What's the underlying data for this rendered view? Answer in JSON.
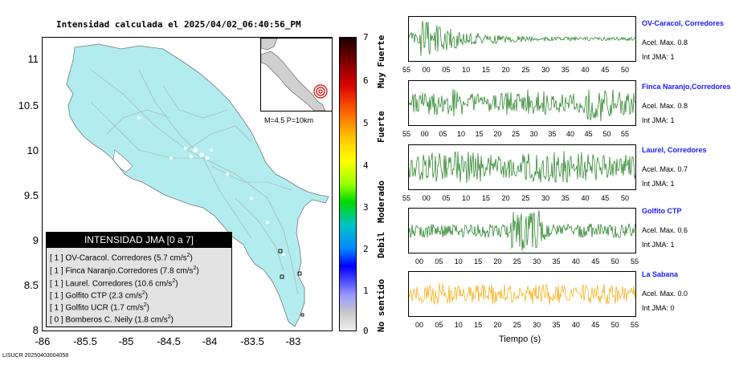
{
  "title": "Intensidad calculada el 2025/04/02_06:40:56_PM",
  "map": {
    "y_ticks": [
      "11",
      "10.5",
      "10",
      "9.5",
      "9",
      "8.5",
      "8"
    ],
    "x_ticks": [
      "-86",
      "-85.5",
      "-85",
      "-84.5",
      "-84",
      "-83.5",
      "-83"
    ],
    "land_color": "#b3ecee",
    "inset_text": "M=4.5 P=10km"
  },
  "legend": {
    "heading": "INTENSIDAD JMA [0 a 7]",
    "rows": [
      {
        "int": "[ 1 ]",
        "name": "OV-Caracol. Corredores",
        "acc": "(5.7 cm/s",
        "sup": "2",
        "close": ")"
      },
      {
        "int": "[ 1 ]",
        "name": "Finca Naranjo.Corredores",
        "acc": "(7.8 cm/s",
        "sup": "2",
        "close": ")"
      },
      {
        "int": "[ 1 ]",
        "name": "Laurel. Corredores",
        "acc": "(10.6 cm/s",
        "sup": "2",
        "close": ")"
      },
      {
        "int": "[ 1 ]",
        "name": "Golfito CTP",
        "acc": "(2.3 cm/s",
        "sup": "2",
        "close": ")"
      },
      {
        "int": "[ 1 ]",
        "name": "Golfito UCR",
        "acc": "(1.7 cm/s",
        "sup": "2",
        "close": ")"
      },
      {
        "int": "[ 0 ]",
        "name": "Bomberos C. Neily",
        "acc": "(1.8 cm/s",
        "sup": "2",
        "close": ")"
      }
    ]
  },
  "colorbar": {
    "labels": [
      "7",
      "6",
      "5",
      "4",
      "3",
      "2",
      "1",
      "0"
    ],
    "categories": [
      "Muy Fuerte",
      "Fuerte",
      "Moderado",
      "Debil",
      "No sentido"
    ]
  },
  "traces": [
    {
      "name": "OV-Caracol, Corredores",
      "acel": "Acel. Max. 0.8",
      "int": "Int JMA: 1",
      "color": "#1a7a1a",
      "ticks": [
        "55",
        "00",
        "05",
        "10",
        "15",
        "20",
        "25",
        "30",
        "35",
        "40",
        "45",
        "50"
      ]
    },
    {
      "name": "Finca Naranjo,Corredores",
      "acel": "Acel. Max. 0.8",
      "int": "Int JMA: 1",
      "color": "#1a7a1a",
      "ticks": [
        "55",
        "00",
        "05",
        "10",
        "15",
        "20",
        "25",
        "30",
        "35",
        "40",
        "45",
        "50",
        "55"
      ]
    },
    {
      "name": "Laurel, Corredores",
      "acel": "Acel. Max. 0.7",
      "int": "Int JMA: 1",
      "color": "#1a7a1a",
      "ticks": [
        "55",
        "00",
        "05",
        "10",
        "15",
        "20",
        "25",
        "30",
        "35",
        "40",
        "45",
        "50"
      ]
    },
    {
      "name": "Golfito CTP",
      "acel": "Acel. Max. 0.6",
      "int": "Int JMA: 1",
      "color": "#1a7a1a",
      "ticks": [
        "00",
        "05",
        "10",
        "15",
        "20",
        "25",
        "30",
        "35",
        "40",
        "45",
        "50",
        "55"
      ]
    },
    {
      "name": "La Sabana",
      "acel": "Acel. Max. 0.0",
      "int": "Int JMA: 0",
      "color": "#f5a800",
      "ticks": [
        "00",
        "05",
        "10",
        "15",
        "20",
        "25",
        "30",
        "35",
        "40",
        "45",
        "50",
        "55"
      ]
    }
  ],
  "xaxis_title": "Tiempo (s)",
  "footer": "LISUCR 20250403004058"
}
